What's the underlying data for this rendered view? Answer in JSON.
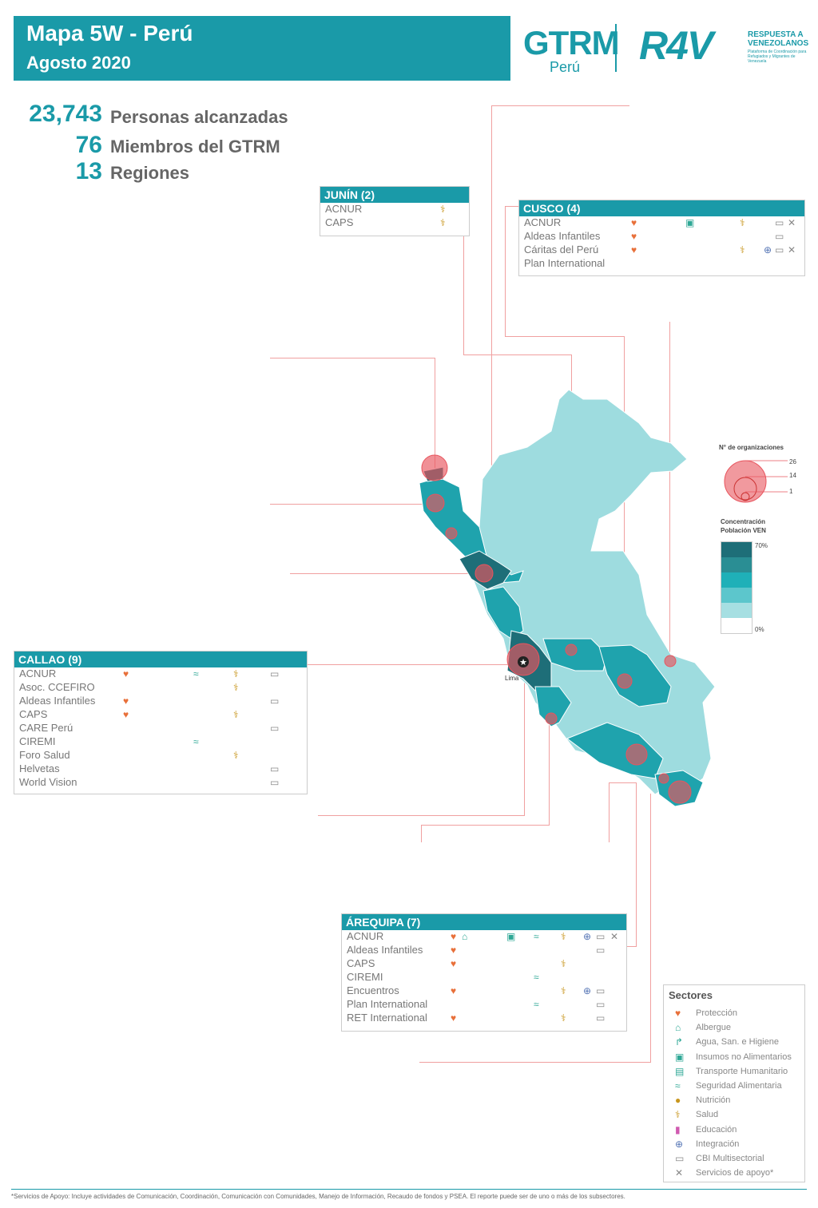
{
  "header": {
    "title": "Mapa 5W - Perú",
    "subtitle": "Agosto 2020"
  },
  "logos": {
    "gtrm": "GTRM",
    "gtrm_sub": "Perú",
    "r4v": "R4V",
    "r4v_title": "RESPUESTA A VENEZOLANOS",
    "r4v_sub": "Plataforma de Coordinación para Refugiados y Migrantes de Venezuela"
  },
  "stats": [
    {
      "value": "23,743",
      "label": "Personas alcanzadas"
    },
    {
      "value": "76",
      "label": "Miembros del GTRM"
    },
    {
      "value": "13",
      "label": "Regiones"
    }
  ],
  "regions": {
    "junin": {
      "title": "JUNÍN (2)",
      "rows": [
        {
          "name": "ACNUR",
          "icons": [
            "salud"
          ]
        },
        {
          "name": "CAPS",
          "icons": [
            "salud"
          ]
        }
      ]
    },
    "cusco": {
      "title": "CUSCO (4)",
      "rows": [
        {
          "name": "ACNUR",
          "icons": [
            "proteccion",
            "insumos",
            "salud",
            "cbi",
            "servicios"
          ]
        },
        {
          "name": "Aldeas Infantiles",
          "icons": [
            "proteccion",
            "cbi"
          ]
        },
        {
          "name": "Cáritas del Perú",
          "icons": [
            "proteccion",
            "salud",
            "integracion",
            "cbi",
            "servicios"
          ]
        },
        {
          "name": "Plan International",
          "icons": []
        }
      ]
    },
    "callao": {
      "title": "CALLAO (9)",
      "rows": [
        {
          "name": "ACNUR",
          "icons": [
            "proteccion",
            "seguridad",
            "salud",
            "cbi"
          ]
        },
        {
          "name": "Asoc. CCEFIRO",
          "icons": [
            "salud"
          ]
        },
        {
          "name": "Aldeas Infantiles",
          "icons": [
            "proteccion",
            "cbi"
          ]
        },
        {
          "name": "CAPS",
          "icons": [
            "proteccion",
            "salud"
          ]
        },
        {
          "name": "CARE Perú",
          "icons": [
            "cbi"
          ]
        },
        {
          "name": "CIREMI",
          "icons": [
            "seguridad"
          ]
        },
        {
          "name": "Foro Salud",
          "icons": [
            "salud"
          ]
        },
        {
          "name": "Helvetas",
          "icons": [
            "cbi"
          ]
        },
        {
          "name": "World Vision",
          "icons": [
            "cbi"
          ]
        }
      ]
    },
    "arequipa": {
      "title": "ÁREQUIPA (7)",
      "rows": [
        {
          "name": "ACNUR",
          "icons": [
            "proteccion",
            "albergue",
            "insumos",
            "seguridad",
            "salud",
            "integracion",
            "cbi",
            "servicios"
          ]
        },
        {
          "name": "Aldeas Infantiles",
          "icons": [
            "proteccion",
            "cbi"
          ]
        },
        {
          "name": "CAPS",
          "icons": [
            "proteccion",
            "salud"
          ]
        },
        {
          "name": "CIREMI",
          "icons": [
            "seguridad"
          ]
        },
        {
          "name": "Encuentros",
          "icons": [
            "proteccion",
            "salud",
            "integracion",
            "cbi"
          ]
        },
        {
          "name": "Plan International",
          "icons": [
            "seguridad",
            "cbi"
          ]
        },
        {
          "name": "RET International",
          "icons": [
            "proteccion",
            "salud",
            "cbi"
          ]
        }
      ]
    }
  },
  "map": {
    "capital_label": "Lima",
    "bubble_legend": {
      "title": "N° de organizaciones",
      "values": [
        "26",
        "14",
        "1"
      ]
    },
    "concentration_legend": {
      "title": "Concentración Población VEN",
      "max": "70%",
      "min": "0%",
      "colors": [
        "#1e6e78",
        "#2a8e94",
        "#1fb0b8",
        "#5cc6cc",
        "#a6dfe2",
        "#ffffff"
      ]
    },
    "colors": {
      "dark": "#1e6e78",
      "mid": "#1fa3ad",
      "light": "#9edcdf",
      "bubble": "#e8555e"
    }
  },
  "legend": {
    "title": "Sectores",
    "items": [
      {
        "icon": "proteccion-icon",
        "label": "Protección"
      },
      {
        "icon": "albergue-icon",
        "label": "Albergue"
      },
      {
        "icon": "agua-icon",
        "label": "Agua, San. e Higiene"
      },
      {
        "icon": "insumos-icon",
        "label": "Insumos no Alimentarios"
      },
      {
        "icon": "transporte-icon",
        "label": "Transporte Humanitario"
      },
      {
        "icon": "seguridad-icon",
        "label": "Seguridad Alimentaria"
      },
      {
        "icon": "nutricion-icon",
        "label": "Nutrición"
      },
      {
        "icon": "salud-icon",
        "label": "Salud"
      },
      {
        "icon": "educacion-icon",
        "label": "Educación"
      },
      {
        "icon": "integracion-icon",
        "label": "Integración"
      },
      {
        "icon": "cbi-icon",
        "label": "CBI Multisectorial"
      },
      {
        "icon": "servicios-icon",
        "label": "Servicios de apoyo*"
      }
    ]
  },
  "footnote": "*Servicios de Apoyo: Incluye actividades de Comunicación, Coordinación, Comunicación con Comunidades, Manejo de Información, Recaudo de fondos y PSEA. El reporte puede ser de uno o más de los subsectores."
}
